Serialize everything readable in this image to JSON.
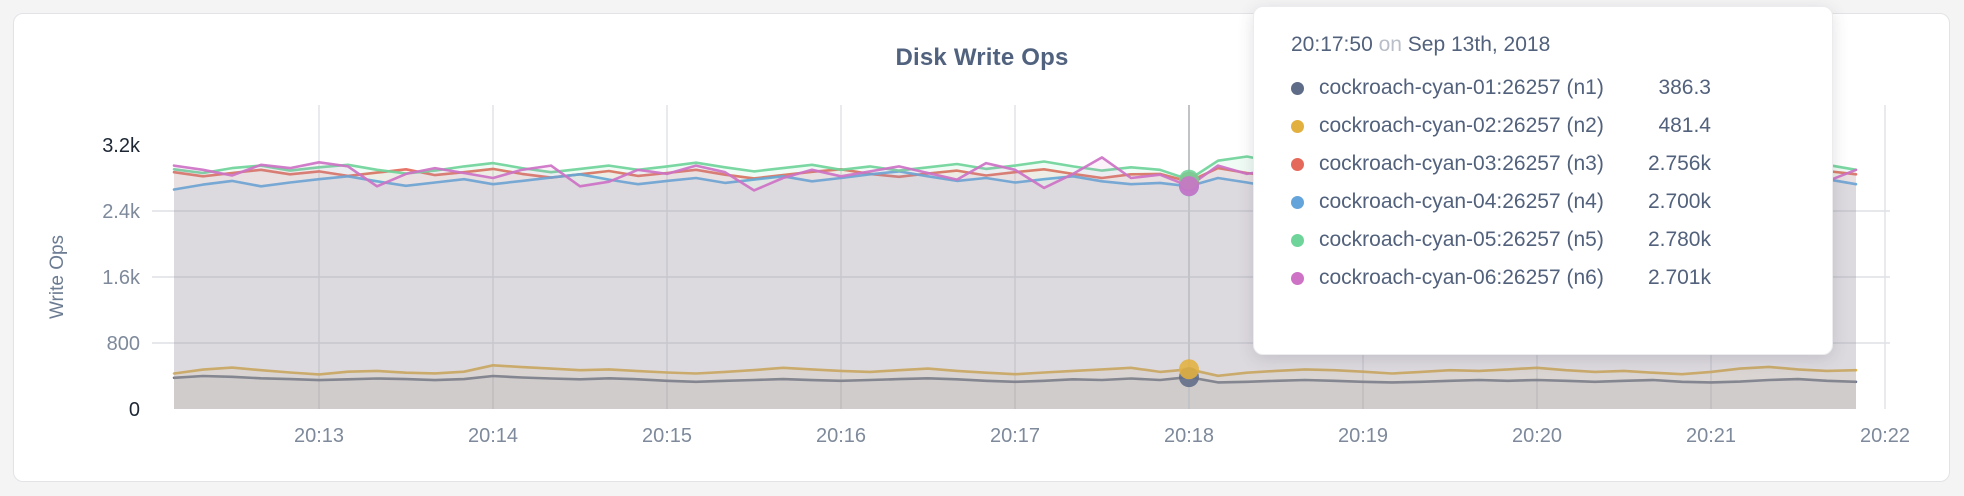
{
  "theme": {
    "page_bg": "#f4f4f5",
    "card_bg": "#ffffff",
    "card_border": "#e2e3e6",
    "title_color": "#51627f",
    "tick_color": "#7e8a9b",
    "tick_strong_color": "#1d2734",
    "axis_label_color": "#6b7b92",
    "grid_color": "#dfe1e5",
    "hover_line_color": "#c2c3c6",
    "tooltip_text": "#52617c",
    "tooltip_muted": "#b9bfc9"
  },
  "chart_data": {
    "type": "line",
    "title": "Disk Write Ops",
    "xlabel": "",
    "ylabel": "Write Ops",
    "ylim": [
      0,
      3200
    ],
    "grid": true,
    "legend_position": "tooltip",
    "x_unit": "time (HH:MM, seconds since 20:00)",
    "x_start_sec": 730,
    "x_step_sec": 10,
    "x_ticks": [
      {
        "label": "20:13",
        "sec": 780
      },
      {
        "label": "20:14",
        "sec": 840
      },
      {
        "label": "20:15",
        "sec": 900
      },
      {
        "label": "20:16",
        "sec": 960
      },
      {
        "label": "20:17",
        "sec": 1020
      },
      {
        "label": "20:18",
        "sec": 1080
      },
      {
        "label": "20:19",
        "sec": 1140
      },
      {
        "label": "20:20",
        "sec": 1200
      },
      {
        "label": "20:21",
        "sec": 1260
      },
      {
        "label": "20:22",
        "sec": 1320
      }
    ],
    "y_ticks": [
      {
        "label": "0",
        "value": 0,
        "strong": true,
        "grid": false
      },
      {
        "label": "800",
        "value": 800,
        "strong": false,
        "grid": true
      },
      {
        "label": "1.6k",
        "value": 1600,
        "strong": false,
        "grid": true
      },
      {
        "label": "2.4k",
        "value": 2400,
        "strong": false,
        "grid": true
      },
      {
        "label": "3.2k",
        "value": 3200,
        "strong": true,
        "grid": false
      }
    ],
    "series": [
      {
        "id": "n1",
        "name": "cockroach-cyan-01:26257 (n1)",
        "color": "#5F6C87",
        "values": [
          378,
          400,
          390,
          372,
          362,
          350,
          360,
          370,
          362,
          350,
          362,
          400,
          382,
          370,
          360,
          372,
          360,
          342,
          330,
          342,
          352,
          362,
          350,
          342,
          352,
          362,
          372,
          360,
          342,
          330,
          342,
          360,
          352,
          370,
          352,
          386.3,
          322,
          330,
          342,
          352,
          342,
          330,
          322,
          330,
          342,
          352,
          342,
          352,
          342,
          330,
          342,
          352,
          330,
          322,
          332,
          352,
          362,
          342,
          330
        ]
      },
      {
        "id": "n2",
        "name": "cockroach-cyan-02:26257 (n2)",
        "color": "#E2B03F",
        "values": [
          430,
          478,
          502,
          470,
          442,
          420,
          452,
          462,
          440,
          432,
          452,
          530,
          508,
          490,
          470,
          480,
          460,
          442,
          430,
          450,
          472,
          500,
          480,
          462,
          450,
          470,
          490,
          462,
          440,
          422,
          442,
          462,
          480,
          500,
          450,
          481.4,
          402,
          440,
          462,
          480,
          470,
          452,
          430,
          450,
          470,
          462,
          480,
          500,
          470,
          450,
          462,
          440,
          422,
          450,
          490,
          510,
          480,
          462,
          470
        ]
      },
      {
        "id": "n3",
        "name": "cockroach-cyan-03:26257 (n3)",
        "color": "#E5695B",
        "values": [
          2870,
          2820,
          2860,
          2900,
          2845,
          2880,
          2825,
          2865,
          2905,
          2835,
          2870,
          2910,
          2850,
          2805,
          2845,
          2885,
          2825,
          2860,
          2900,
          2840,
          2795,
          2835,
          2875,
          2905,
          2850,
          2815,
          2855,
          2890,
          2830,
          2870,
          2905,
          2850,
          2800,
          2845,
          2850,
          2756,
          2920,
          2860,
          2815,
          2850,
          2890,
          2830,
          2870,
          2825,
          2860,
          2900,
          2840,
          2880,
          2915,
          2860,
          2810,
          2850,
          2890,
          2835,
          2870,
          2905,
          2850,
          2885,
          2845
        ]
      },
      {
        "id": "n4",
        "name": "cockroach-cyan-04:26257 (n4)",
        "color": "#64A4DB",
        "values": [
          2660,
          2720,
          2765,
          2700,
          2745,
          2785,
          2820,
          2760,
          2705,
          2745,
          2785,
          2725,
          2765,
          2805,
          2845,
          2780,
          2725,
          2765,
          2800,
          2740,
          2780,
          2820,
          2760,
          2800,
          2845,
          2880,
          2820,
          2765,
          2800,
          2745,
          2785,
          2820,
          2760,
          2725,
          2740,
          2700,
          2800,
          2745,
          2685,
          2645,
          2700,
          2745,
          2785,
          2725,
          2765,
          2805,
          2745,
          2785,
          2725,
          2765,
          2805,
          2745,
          2785,
          2820,
          2760,
          2705,
          2745,
          2785,
          2725
        ]
      },
      {
        "id": "n5",
        "name": "cockroach-cyan-05:26257 (n5)",
        "color": "#6FD49A",
        "values": [
          2905,
          2860,
          2920,
          2950,
          2890,
          2930,
          2960,
          2900,
          2855,
          2890,
          2940,
          2980,
          2920,
          2870,
          2910,
          2950,
          2900,
          2940,
          2985,
          2930,
          2880,
          2920,
          2960,
          2900,
          2940,
          2890,
          2930,
          2970,
          2910,
          2950,
          3000,
          2940,
          2890,
          2930,
          2900,
          2780,
          3010,
          3060,
          2990,
          2920,
          2960,
          2900,
          2940,
          2980,
          2920,
          2870,
          2910,
          2950,
          2890,
          2930,
          2970,
          2910,
          2950,
          2900,
          2940,
          2880,
          2920,
          2960,
          2900
        ]
      },
      {
        "id": "n6",
        "name": "cockroach-cyan-06:26257 (n6)",
        "color": "#CD72C5",
        "values": [
          2950,
          2900,
          2830,
          2960,
          2920,
          2990,
          2940,
          2700,
          2850,
          2920,
          2860,
          2800,
          2900,
          2950,
          2700,
          2755,
          2900,
          2850,
          2950,
          2870,
          2650,
          2800,
          2900,
          2820,
          2880,
          2940,
          2860,
          2780,
          2980,
          2900,
          2680,
          2850,
          3050,
          2800,
          2840,
          2701,
          2950,
          2850,
          2905,
          2960,
          2700,
          2755,
          2880,
          2920,
          2840,
          2900,
          3060,
          2800,
          2860,
          2920,
          2680,
          2840,
          2900,
          2960,
          2880,
          2820,
          2940,
          2760,
          2900
        ]
      }
    ]
  },
  "tooltip": {
    "time": "20:17:50",
    "on_word": "on",
    "date": "Sep 13th, 2018",
    "hover_index": 35,
    "rows": [
      {
        "name": "cockroach-cyan-01:26257 (n1)",
        "value": "386.3",
        "color": "#5F6C87"
      },
      {
        "name": "cockroach-cyan-02:26257 (n2)",
        "value": "481.4",
        "color": "#E2B03F"
      },
      {
        "name": "cockroach-cyan-03:26257 (n3)",
        "value": "2.756k",
        "color": "#E5695B"
      },
      {
        "name": "cockroach-cyan-04:26257 (n4)",
        "value": "2.700k",
        "color": "#64A4DB"
      },
      {
        "name": "cockroach-cyan-05:26257 (n5)",
        "value": "2.780k",
        "color": "#6FD49A"
      },
      {
        "name": "cockroach-cyan-06:26257 (n6)",
        "value": "2.701k",
        "color": "#CD72C5"
      }
    ]
  }
}
